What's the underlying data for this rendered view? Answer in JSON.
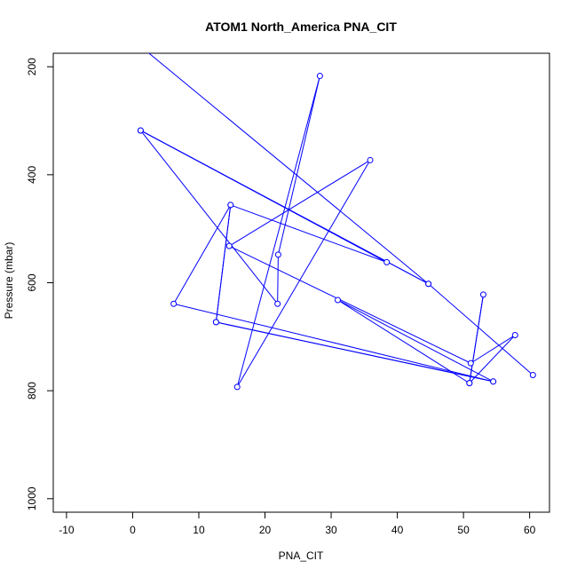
{
  "chart_data": {
    "type": "line",
    "title": "ATOM1 North_America PNA_CIT",
    "xlabel": "PNA_CIT",
    "ylabel": "Pressure (mbar)",
    "xlim": [
      -12,
      63
    ],
    "ylim": [
      1025,
      175
    ],
    "y_reversed": true,
    "xticks": [
      -10,
      0,
      10,
      20,
      30,
      40,
      50,
      60
    ],
    "yticks": [
      200,
      400,
      600,
      800,
      1000
    ],
    "grid": false,
    "legend": "none",
    "colors": {
      "series": "#0000ff",
      "axis": "#000000",
      "background": "#ffffff"
    },
    "series": [
      {
        "marker": "open-circle",
        "points": [
          {
            "x": 0.0,
            "y": 150
          },
          {
            "x": 44.7,
            "y": 602
          },
          {
            "x": 1.2,
            "y": 318
          },
          {
            "x": 21.9,
            "y": 639
          },
          {
            "x": 22.0,
            "y": 548
          },
          {
            "x": 28.3,
            "y": 217
          },
          {
            "x": 15.8,
            "y": 793
          },
          {
            "x": 35.9,
            "y": 373
          },
          {
            "x": 14.6,
            "y": 532
          },
          {
            "x": 51.1,
            "y": 749
          },
          {
            "x": 57.8,
            "y": 697
          },
          {
            "x": 50.9,
            "y": 786
          },
          {
            "x": 53.0,
            "y": 622
          },
          {
            "x": 50.9,
            "y": 786
          },
          {
            "x": 31.0,
            "y": 632
          },
          {
            "x": 54.5,
            "y": 783
          },
          {
            "x": 12.6,
            "y": 673
          },
          {
            "x": 54.5,
            "y": 783
          },
          {
            "x": 6.2,
            "y": 639
          },
          {
            "x": 14.8,
            "y": 456
          },
          {
            "x": 12.6,
            "y": 673
          },
          {
            "x": 14.8,
            "y": 456
          },
          {
            "x": 38.4,
            "y": 562
          },
          {
            "x": 1.2,
            "y": 318
          },
          {
            "x": 44.7,
            "y": 602
          },
          {
            "x": 60.5,
            "y": 771
          }
        ]
      }
    ]
  }
}
